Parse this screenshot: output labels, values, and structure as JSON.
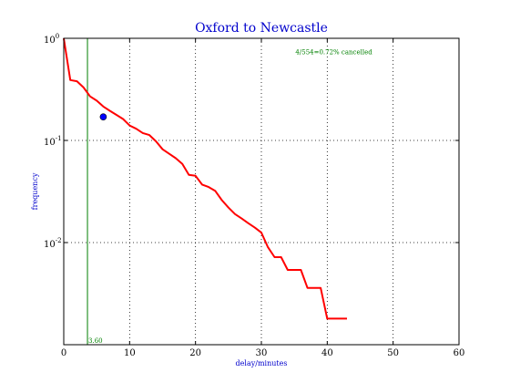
{
  "chart_data": {
    "type": "line",
    "title": "Oxford to Newcastle",
    "xlabel": "delay/minutes",
    "ylabel": "frequency",
    "xlim": [
      0,
      60
    ],
    "ylim": [
      0.001,
      1
    ],
    "yscale": "log",
    "grid": true,
    "x_ticks": [
      0,
      10,
      20,
      30,
      40,
      50,
      60
    ],
    "y_ticks": [
      {
        "value": 1,
        "base": "10",
        "exp": "0"
      },
      {
        "value": 0.1,
        "base": "10",
        "exp": "-1"
      },
      {
        "value": 0.01,
        "base": "10",
        "exp": "-2"
      }
    ],
    "series": [
      {
        "color": "#ff0000",
        "x": [
          0,
          1,
          2,
          3,
          4,
          5,
          6,
          7,
          8,
          9,
          10,
          11,
          12,
          13,
          14,
          15,
          16,
          17,
          18,
          19,
          20,
          21,
          22,
          23,
          24,
          25,
          26,
          27,
          28,
          29,
          30,
          31,
          32,
          33,
          34,
          35,
          36,
          37,
          38,
          39,
          40,
          41,
          42,
          43
        ],
        "y": [
          1.0,
          0.39,
          0.38,
          0.33,
          0.27,
          0.245,
          0.215,
          0.195,
          0.178,
          0.162,
          0.14,
          0.13,
          0.118,
          0.113,
          0.098,
          0.082,
          0.074,
          0.067,
          0.059,
          0.046,
          0.045,
          0.037,
          0.035,
          0.032,
          0.026,
          0.022,
          0.019,
          0.0172,
          0.0155,
          0.014,
          0.0125,
          0.009,
          0.0072,
          0.0072,
          0.0054,
          0.0054,
          0.0054,
          0.0036,
          0.0036,
          0.0036,
          0.0018,
          0.0018,
          0.0018,
          0.0018
        ]
      }
    ],
    "median": {
      "x": 3.6,
      "label": "3.60",
      "color": "#008000"
    },
    "point": {
      "x": 6,
      "y": 0.17,
      "color": "#0000ff"
    },
    "annotation": {
      "text": "4/554=0.72% cancelled",
      "color": "#008000",
      "x": 41,
      "y": 0.7
    }
  }
}
